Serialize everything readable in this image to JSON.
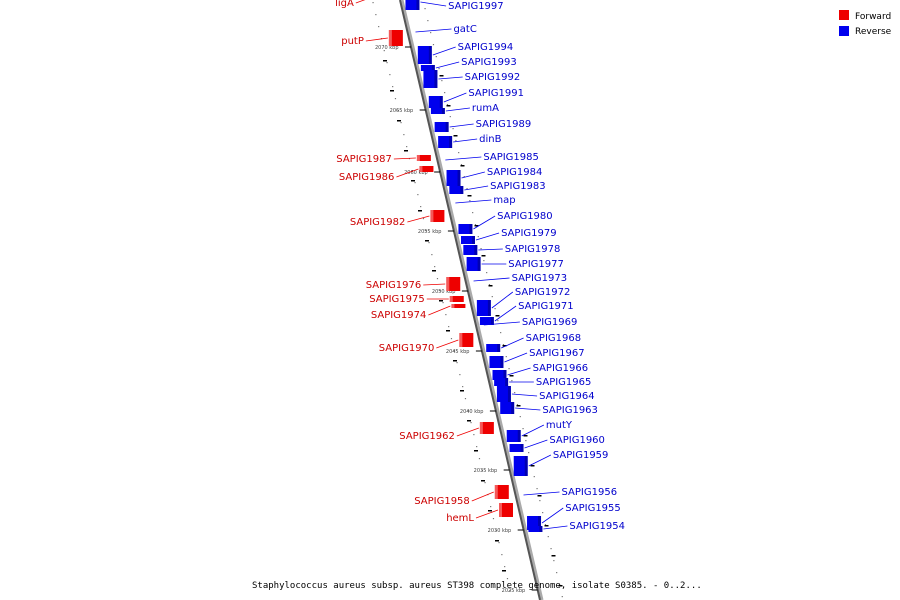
{
  "legend": {
    "forward": {
      "label": "Forward",
      "color": "#ee0000"
    },
    "reverse": {
      "label": "Reverse",
      "color": "#0000ee"
    }
  },
  "caption": "Staphylococcus aureus subsp. aureus ST398 complete genome, isolate S0385. - 0..2...",
  "ticks": [
    "2070 kbp",
    "2065 kbp",
    "2060 kbp",
    "2055 kbp",
    "2050 kbp",
    "2045 kbp",
    "2040 kbp",
    "2035 kbp",
    "2030 kbp",
    "2025 kbp"
  ],
  "forward_genes": [
    "ligA",
    "putP",
    "SAPIG1987",
    "SAPIG1986",
    "SAPIG1982",
    "SAPIG1976",
    "SAPIG1975",
    "SAPIG1974",
    "SAPIG1970",
    "SAPIG1962",
    "SAPIG1958",
    "hemL"
  ],
  "reverse_genes": [
    "SAPIG1997",
    "gatC",
    "SAPIG1994",
    "SAPIG1993",
    "SAPIG1992",
    "SAPIG1991",
    "rumA",
    "SAPIG1989",
    "dinB",
    "SAPIG1985",
    "SAPIG1984",
    "SAPIG1983",
    "map",
    "SAPIG1980",
    "SAPIG1979",
    "SAPIG1978",
    "SAPIG1977",
    "SAPIG1973",
    "SAPIG1972",
    "SAPIG1971",
    "SAPIG1969",
    "SAPIG1968",
    "SAPIG1967",
    "SAPIG1966",
    "SAPIG1965",
    "SAPIG1964",
    "SAPIG1963",
    "mutY",
    "SAPIG1960",
    "SAPIG1959",
    "SAPIG1956",
    "SAPIG1955",
    "SAPIG1954"
  ]
}
